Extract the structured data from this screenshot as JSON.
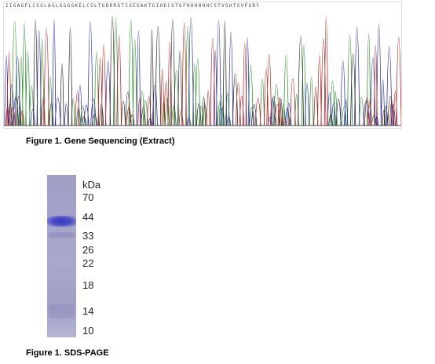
{
  "sequence_header": "IIGAGFLCSGLAGLGGGGKELCSLTGDRRGTIGEGAKTGIHECGTGFHHHHHHCSTVSHTSVFGRY",
  "figure1": {
    "caption": "Figure 1. Gene Sequencing (Extract)"
  },
  "figure2": {
    "caption": "Figure 1. SDS-PAGE",
    "unit_label": "kDa",
    "markers": [
      "70",
      "44",
      "33",
      "26",
      "22",
      "18",
      "14",
      "10"
    ]
  }
}
